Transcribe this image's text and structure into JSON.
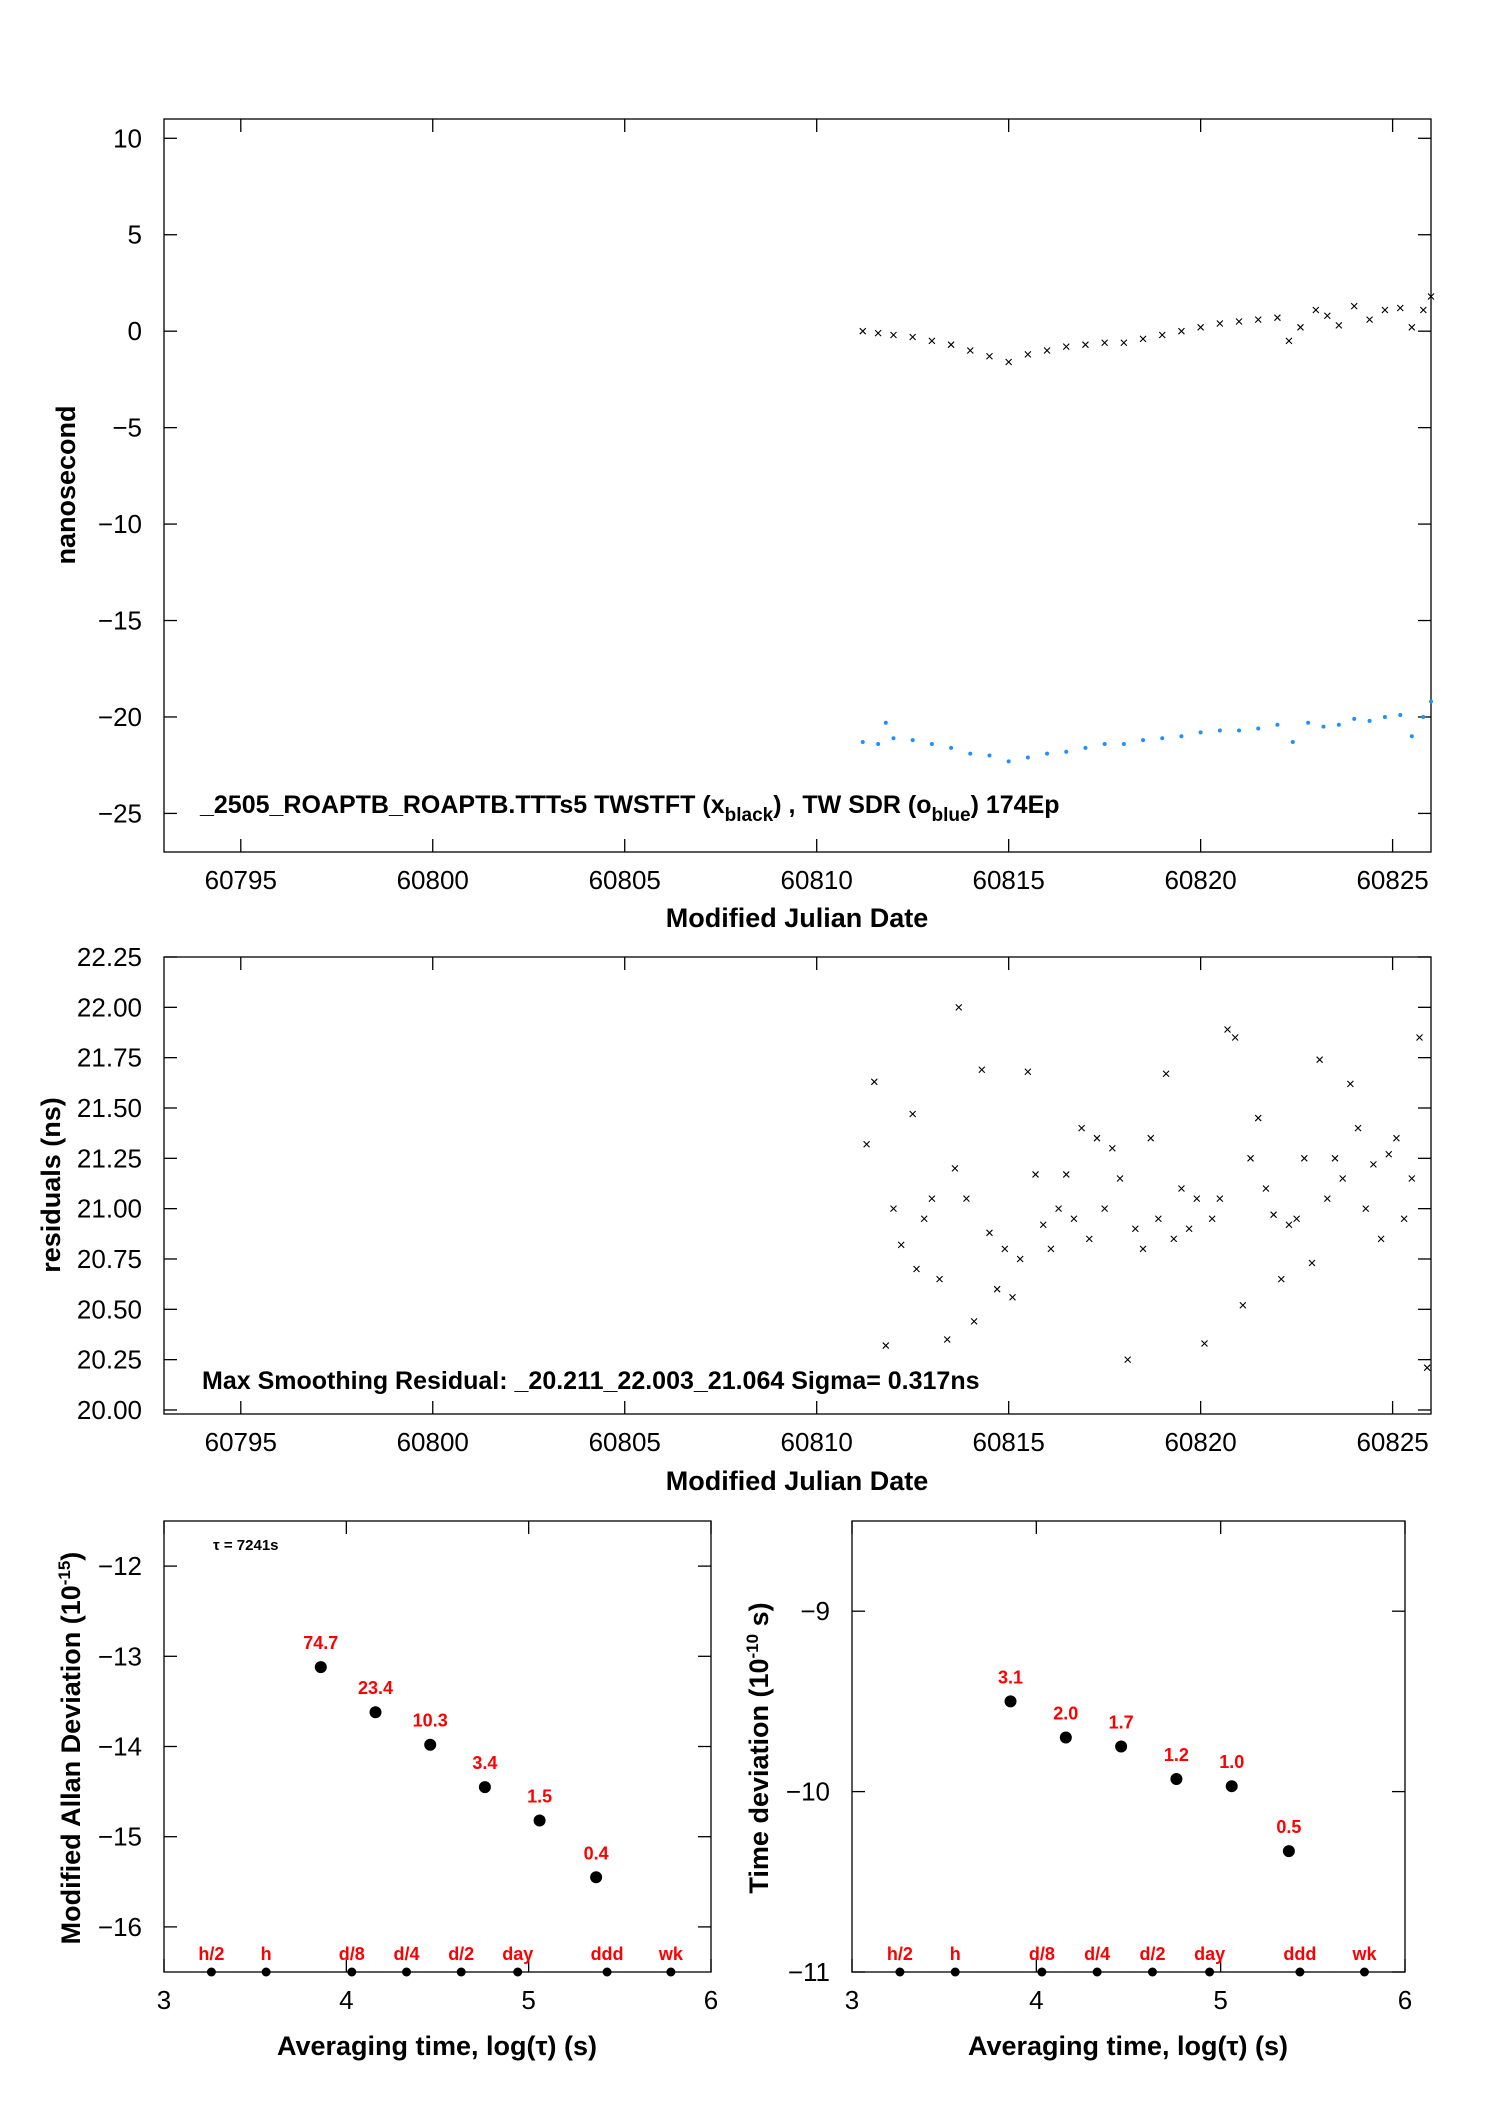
{
  "chart_data": [
    {
      "type": "scatter",
      "xlabel": "Modified Julian Date",
      "ylabel": "nanosecond",
      "xlim": [
        60793,
        60826
      ],
      "ylim": [
        -27,
        11
      ],
      "xticks": [
        60795,
        60800,
        60805,
        60810,
        60815,
        60820,
        60825
      ],
      "yticks": [
        10,
        5,
        0,
        -5,
        -10,
        -15,
        -20,
        -25
      ],
      "annotation": {
        "prefix": "_2505_ROAPTB_ROAPTB.TTTs5     TWSTFT (x",
        "sub1": "black",
        "mid": ") ,  TW SDR (o",
        "sub2": "blue",
        "suffix": ")  174Ep"
      },
      "series": [
        {
          "color": "#000000",
          "marker": "x",
          "x": [
            60811.2,
            60811.6,
            60812.0,
            60812.5,
            60813.0,
            60813.5,
            60814.0,
            60814.5,
            60815.0,
            60815.5,
            60816.0,
            60816.5,
            60817.0,
            60817.5,
            60818.0,
            60818.5,
            60819.0,
            60819.5,
            60820.0,
            60820.5,
            60821.0,
            60821.5,
            60822.0,
            60822.3,
            60822.6,
            60823.0,
            60823.3,
            60823.6,
            60824.0,
            60824.4,
            60824.8,
            60825.2,
            60825.5,
            60825.8,
            60826.0
          ],
          "y": [
            0.0,
            -0.1,
            -0.2,
            -0.3,
            -0.5,
            -0.7,
            -1.0,
            -1.3,
            -1.6,
            -1.2,
            -1.0,
            -0.8,
            -0.7,
            -0.6,
            -0.6,
            -0.4,
            -0.2,
            0.0,
            0.2,
            0.4,
            0.5,
            0.6,
            0.7,
            -0.5,
            0.2,
            1.1,
            0.8,
            0.3,
            1.3,
            0.6,
            1.1,
            1.2,
            0.2,
            1.1,
            1.8
          ]
        },
        {
          "color": "#1e90ff",
          "marker": "o",
          "x": [
            60811.2,
            60811.6,
            60811.8,
            60812.0,
            60812.5,
            60813.0,
            60813.5,
            60814.0,
            60814.5,
            60815.0,
            60815.5,
            60816.0,
            60816.5,
            60817.0,
            60817.5,
            60818.0,
            60818.5,
            60819.0,
            60819.5,
            60820.0,
            60820.5,
            60821.0,
            60821.5,
            60822.0,
            60822.4,
            60822.8,
            60823.2,
            60823.6,
            60824.0,
            60824.4,
            60824.8,
            60825.2,
            60825.5,
            60825.8,
            60826.0
          ],
          "y": [
            -21.3,
            -21.4,
            -20.3,
            -21.1,
            -21.2,
            -21.4,
            -21.6,
            -21.9,
            -22.0,
            -22.3,
            -22.1,
            -21.9,
            -21.8,
            -21.6,
            -21.4,
            -21.4,
            -21.2,
            -21.1,
            -21.0,
            -20.8,
            -20.7,
            -20.7,
            -20.6,
            -20.4,
            -21.3,
            -20.3,
            -20.5,
            -20.4,
            -20.1,
            -20.2,
            -20.0,
            -19.9,
            -21.0,
            -20.0,
            -19.2
          ]
        }
      ]
    },
    {
      "type": "scatter",
      "xlabel": "Modified Julian Date",
      "ylabel": "residuals (ns)",
      "xlim": [
        60793,
        60826
      ],
      "ylim": [
        19.98,
        22.25
      ],
      "xticks": [
        60795,
        60800,
        60805,
        60810,
        60815,
        60820,
        60825
      ],
      "yticks": [
        "20.00",
        "20.25",
        "20.50",
        "20.75",
        "21.00",
        "21.25",
        "21.50",
        "21.75",
        "22.00",
        "22.25"
      ],
      "annotation": "Max Smoothing Residual: _20.211_22.003_21.064  Sigma= 0.317ns",
      "series": [
        {
          "color": "#000000",
          "marker": "x",
          "x": [
            60811.3,
            60811.5,
            60811.8,
            60812.0,
            60812.2,
            60812.5,
            60812.6,
            60812.8,
            60813.0,
            60813.2,
            60813.4,
            60813.6,
            60813.7,
            60813.9,
            60814.1,
            60814.3,
            60814.5,
            60814.7,
            60814.9,
            60815.1,
            60815.3,
            60815.5,
            60815.7,
            60815.9,
            60816.1,
            60816.3,
            60816.5,
            60816.7,
            60816.9,
            60817.1,
            60817.3,
            60817.5,
            60817.7,
            60817.9,
            60818.1,
            60818.3,
            60818.5,
            60818.7,
            60818.9,
            60819.1,
            60819.3,
            60819.5,
            60819.7,
            60819.9,
            60820.1,
            60820.3,
            60820.5,
            60820.7,
            60820.9,
            60821.1,
            60821.3,
            60821.5,
            60821.7,
            60821.9,
            60822.1,
            60822.3,
            60822.5,
            60822.7,
            60822.9,
            60823.1,
            60823.3,
            60823.5,
            60823.7,
            60823.9,
            60824.1,
            60824.3,
            60824.5,
            60824.7,
            60824.9,
            60825.1,
            60825.3,
            60825.5,
            60825.7,
            60825.9
          ],
          "y": [
            21.32,
            21.63,
            20.32,
            21.0,
            20.82,
            21.47,
            20.7,
            20.95,
            21.05,
            20.65,
            20.35,
            21.2,
            22.0,
            21.05,
            20.44,
            21.69,
            20.88,
            20.6,
            20.8,
            20.56,
            20.75,
            21.68,
            21.17,
            20.92,
            20.8,
            21.0,
            21.17,
            20.95,
            21.4,
            20.85,
            21.35,
            21.0,
            21.3,
            21.15,
            20.25,
            20.9,
            20.8,
            21.35,
            20.95,
            21.67,
            20.85,
            21.1,
            20.9,
            21.05,
            20.33,
            20.95,
            21.05,
            21.89,
            21.85,
            20.52,
            21.25,
            21.45,
            21.1,
            20.97,
            20.65,
            20.92,
            20.95,
            21.25,
            20.73,
            21.74,
            21.05,
            21.25,
            21.15,
            21.62,
            21.4,
            21.0,
            21.22,
            20.85,
            21.27,
            21.35,
            20.95,
            21.15,
            21.85,
            20.21
          ]
        }
      ]
    },
    {
      "type": "scatter",
      "xlabel": "Averaging time, log(τ) (s)",
      "ylabel_main": "Modified Allan Deviation (10",
      "ylabel_sup": "-15",
      "ylabel_end": ")",
      "xlim": [
        3,
        6
      ],
      "ylim": [
        -16.5,
        -11.5
      ],
      "xticks": [
        3,
        4,
        5,
        6
      ],
      "yticks": [
        -12,
        -13,
        -14,
        -15,
        -16
      ],
      "tau_note": "τ = 7241s",
      "markers_x": [
        3.26,
        3.56,
        4.03,
        4.33,
        4.63,
        4.94,
        5.43,
        5.78
      ],
      "markers_labels": [
        "h/2",
        "h",
        "d/8",
        "d/4",
        "d/2",
        "day",
        "ddd",
        "wk"
      ],
      "series": [
        {
          "color": "#000000",
          "x": [
            3.86,
            4.16,
            4.46,
            4.76,
            5.06,
            5.37
          ],
          "y": [
            -13.12,
            -13.62,
            -13.98,
            -14.45,
            -14.82,
            -15.45
          ],
          "labels": [
            "74.7",
            "23.4",
            "10.3",
            "3.4",
            "1.5",
            "0.4"
          ]
        }
      ]
    },
    {
      "type": "scatter",
      "xlabel": "Averaging time, log(τ) (s)",
      "ylabel_main": "Time deviation (10",
      "ylabel_sup": "-10",
      "ylabel_end": " s)",
      "xlim": [
        3,
        6
      ],
      "ylim": [
        -11,
        -8.5
      ],
      "xticks": [
        3,
        4,
        5,
        6
      ],
      "yticks": [
        -9,
        -10,
        -11
      ],
      "markers_x": [
        3.26,
        3.56,
        4.03,
        4.33,
        4.63,
        4.94,
        5.43,
        5.78
      ],
      "markers_labels": [
        "h/2",
        "h",
        "d/8",
        "d/4",
        "d/2",
        "day",
        "ddd",
        "wk"
      ],
      "series": [
        {
          "color": "#000000",
          "x": [
            3.86,
            4.16,
            4.46,
            4.76,
            5.06,
            5.37
          ],
          "y": [
            -9.5,
            -9.7,
            -9.75,
            -9.93,
            -9.97,
            -10.33
          ],
          "labels": [
            "3.1",
            "2.0",
            "1.7",
            "1.2",
            "1.0",
            "0.5"
          ]
        }
      ]
    }
  ]
}
